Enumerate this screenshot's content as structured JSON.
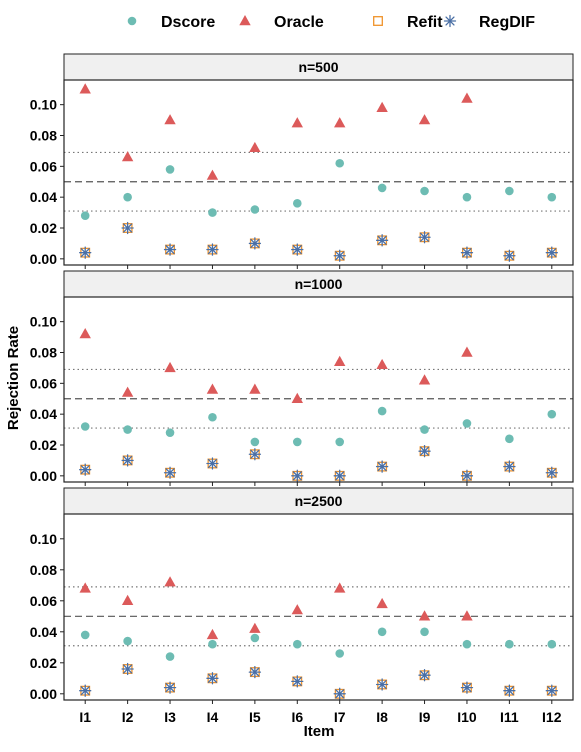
{
  "chart_data": {
    "type": "scatter",
    "xlabel": "Item",
    "ylabel": "Rejection Rate",
    "categories": [
      "I1",
      "I2",
      "I3",
      "I4",
      "I5",
      "I6",
      "I7",
      "I8",
      "I9",
      "I10",
      "I11",
      "I12"
    ],
    "ylim": [
      -0.004,
      0.116
    ],
    "yticks": [
      0.0,
      0.02,
      0.04,
      0.06,
      0.08,
      0.1
    ],
    "ytick_labels": [
      "0.00",
      "0.02",
      "0.04",
      "0.06",
      "0.08",
      "0.10"
    ],
    "reference_lines": [
      {
        "y": 0.05,
        "style": "dashed"
      },
      {
        "y": 0.031,
        "style": "dotted"
      },
      {
        "y": 0.069,
        "style": "dotted"
      }
    ],
    "legend": {
      "position": "top",
      "entries": [
        {
          "name": "Dscore",
          "shape": "circle",
          "color": "#6dbcb3"
        },
        {
          "name": "Oracle",
          "shape": "triangle",
          "color": "#dc5a5a"
        },
        {
          "name": "Refit",
          "shape": "open-square",
          "color": "#f0932b"
        },
        {
          "name": "RegDIF",
          "shape": "asterisk",
          "color": "#4a6fa5"
        }
      ]
    },
    "panels": [
      {
        "title": "n=500",
        "series": [
          {
            "name": "Dscore",
            "values": [
              0.028,
              0.04,
              0.058,
              0.03,
              0.032,
              0.036,
              0.062,
              0.046,
              0.044,
              0.04,
              0.044,
              0.04
            ]
          },
          {
            "name": "Oracle",
            "values": [
              0.11,
              0.066,
              0.09,
              0.054,
              0.072,
              0.088,
              0.088,
              0.098,
              0.09,
              0.104,
              null,
              null
            ]
          },
          {
            "name": "Refit",
            "values": [
              0.004,
              0.02,
              0.006,
              0.006,
              0.01,
              0.006,
              0.002,
              0.012,
              0.014,
              0.004,
              0.002,
              0.004
            ]
          },
          {
            "name": "RegDIF",
            "values": [
              0.004,
              0.02,
              0.006,
              0.006,
              0.01,
              0.006,
              0.002,
              0.012,
              0.014,
              0.004,
              0.002,
              0.004
            ]
          }
        ]
      },
      {
        "title": "n=1000",
        "series": [
          {
            "name": "Dscore",
            "values": [
              0.032,
              0.03,
              0.028,
              0.038,
              0.022,
              0.022,
              0.022,
              0.042,
              0.03,
              0.034,
              0.024,
              0.04
            ]
          },
          {
            "name": "Oracle",
            "values": [
              0.092,
              0.054,
              0.07,
              0.056,
              0.056,
              0.05,
              0.074,
              0.072,
              0.062,
              0.08,
              null,
              null
            ]
          },
          {
            "name": "Refit",
            "values": [
              0.004,
              0.01,
              0.002,
              0.008,
              0.014,
              0.0,
              0.0,
              0.006,
              0.016,
              0.0,
              0.006,
              0.002
            ]
          },
          {
            "name": "RegDIF",
            "values": [
              0.004,
              0.01,
              0.002,
              0.008,
              0.014,
              0.0,
              0.0,
              0.006,
              0.016,
              0.0,
              0.006,
              0.002
            ]
          }
        ]
      },
      {
        "title": "n=2500",
        "series": [
          {
            "name": "Dscore",
            "values": [
              0.038,
              0.034,
              0.024,
              0.032,
              0.036,
              0.032,
              0.026,
              0.04,
              0.04,
              0.032,
              0.032,
              0.032
            ]
          },
          {
            "name": "Oracle",
            "values": [
              0.068,
              0.06,
              0.072,
              0.038,
              0.042,
              0.054,
              0.068,
              0.058,
              0.05,
              0.05,
              null,
              null
            ]
          },
          {
            "name": "Refit",
            "values": [
              0.002,
              0.016,
              0.004,
              0.01,
              0.014,
              0.008,
              0.0,
              0.006,
              0.012,
              0.004,
              0.002,
              0.002
            ]
          },
          {
            "name": "RegDIF",
            "values": [
              0.002,
              0.016,
              0.004,
              0.01,
              0.014,
              0.008,
              0.0,
              0.006,
              0.012,
              0.004,
              0.002,
              0.002
            ]
          }
        ]
      }
    ]
  }
}
